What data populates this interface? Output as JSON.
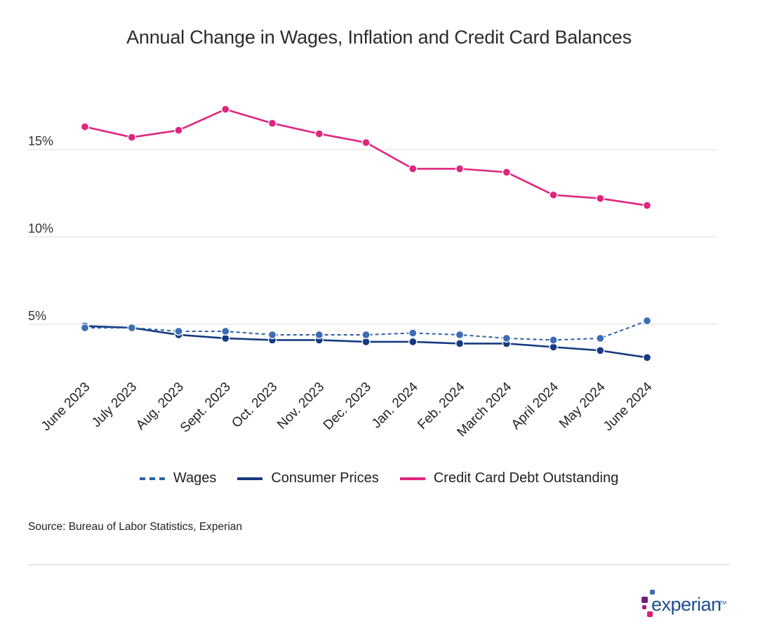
{
  "chart_data": {
    "type": "line",
    "title": "Annual Change in Wages, Inflation and Credit Card Balances",
    "categories": [
      "June 2023",
      "July 2023",
      "Aug. 2023",
      "Sept. 2023",
      "Oct. 2023",
      "Nov. 2023",
      "Dec. 2023",
      "Jan. 2024",
      "Feb. 2024",
      "March 2024",
      "April 2024",
      "May 2024",
      "June 2024"
    ],
    "y_ticks": [
      {
        "value": 5,
        "label": "5%"
      },
      {
        "value": 10,
        "label": "10%"
      },
      {
        "value": 15,
        "label": "15%"
      }
    ],
    "ylim": [
      0,
      19
    ],
    "grid": true,
    "legend_position": "bottom",
    "series": [
      {
        "name": "Wages",
        "style": "dashed",
        "color": "#2e5fa7",
        "values": [
          4.8,
          4.8,
          4.6,
          4.6,
          4.4,
          4.4,
          4.4,
          4.5,
          4.4,
          4.2,
          4.1,
          4.2,
          5.2
        ]
      },
      {
        "name": "Consumer Prices",
        "style": "solid",
        "color": "#173a80",
        "values": [
          4.9,
          4.8,
          4.4,
          4.2,
          4.1,
          4.1,
          4.0,
          4.0,
          3.9,
          3.9,
          3.7,
          3.5,
          3.1
        ]
      },
      {
        "name": "Credit Card Debt Outstanding",
        "style": "solid",
        "color": "#e1257f",
        "values": [
          16.3,
          15.7,
          16.1,
          17.3,
          16.5,
          15.9,
          15.4,
          13.9,
          13.9,
          13.7,
          12.4,
          12.2,
          11.8
        ]
      }
    ]
  },
  "source": "Source: Bureau of Labor Statistics, Experian",
  "logo": {
    "text": "experian",
    "tm": "TM"
  }
}
